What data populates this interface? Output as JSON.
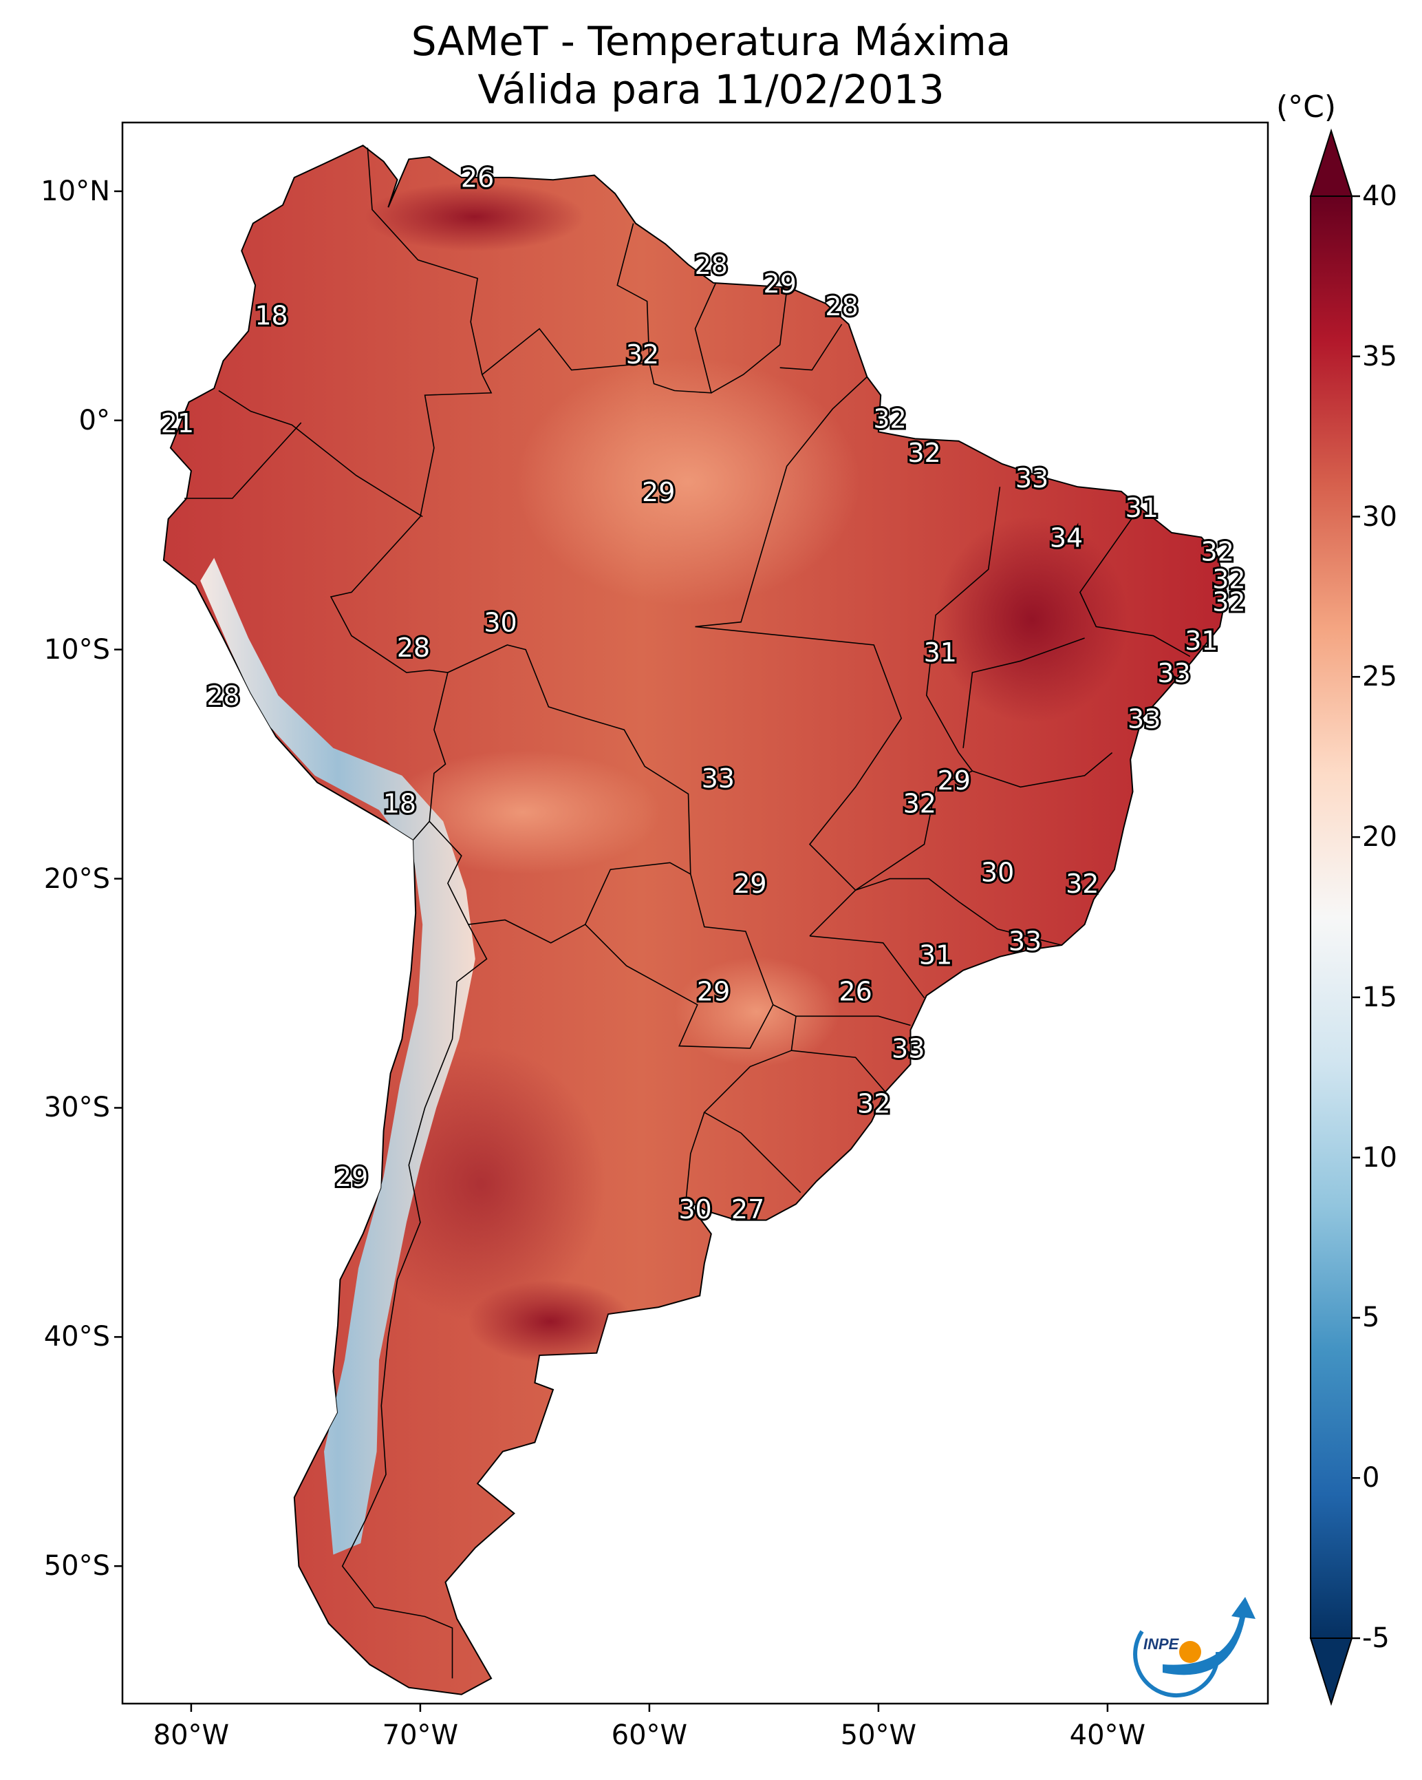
{
  "title": {
    "line1": "SAMeT - Temperatura Máxima",
    "line2": "Válida para 11/02/2013"
  },
  "axes": {
    "lat_labels": [
      "10°N",
      "0°",
      "10°S",
      "20°S",
      "30°S",
      "40°S",
      "50°S"
    ],
    "lat_values": [
      10,
      0,
      -10,
      -20,
      -30,
      -40,
      -50
    ],
    "lon_labels": [
      "80°W",
      "70°W",
      "60°W",
      "50°W",
      "40°W"
    ],
    "lon_values": [
      -80,
      -70,
      -60,
      -50,
      -40
    ],
    "lat_range": [
      -56,
      13
    ],
    "lon_range": [
      -83,
      -33
    ]
  },
  "colorbar": {
    "unit": "(°C)",
    "labels": [
      "40",
      "35",
      "30",
      "25",
      "20",
      "15",
      "10",
      "5",
      "0",
      "-5"
    ],
    "values": [
      40,
      35,
      30,
      25,
      20,
      15,
      10,
      5,
      0,
      -5
    ],
    "range": [
      -5,
      40
    ],
    "colors": [
      "#053061",
      "#2166ac",
      "#4393c3",
      "#92c5de",
      "#d1e5f0",
      "#f7f7f7",
      "#fddbc7",
      "#f4a582",
      "#d6604d",
      "#b2182b",
      "#67001f"
    ]
  },
  "logo": {
    "text": "INPE",
    "colors": {
      "blue": "#1a7cc1",
      "orange": "#f39200"
    }
  },
  "map_annotations": [
    {
      "label": "26",
      "lon": -67.5,
      "lat": 10.5
    },
    {
      "label": "28",
      "lon": -57.3,
      "lat": 6.7
    },
    {
      "label": "29",
      "lon": -54.3,
      "lat": 5.9
    },
    {
      "label": "28",
      "lon": -51.6,
      "lat": 4.9
    },
    {
      "label": "18",
      "lon": -76.5,
      "lat": 4.5
    },
    {
      "label": "32",
      "lon": -60.3,
      "lat": 2.8
    },
    {
      "label": "32",
      "lon": -49.5,
      "lat": 0.0
    },
    {
      "label": "21",
      "lon": -80.6,
      "lat": -0.2
    },
    {
      "label": "32",
      "lon": -48.0,
      "lat": -1.5
    },
    {
      "label": "33",
      "lon": -43.3,
      "lat": -2.6
    },
    {
      "label": "29",
      "lon": -59.6,
      "lat": -3.2
    },
    {
      "label": "31",
      "lon": -38.5,
      "lat": -3.9
    },
    {
      "label": "34",
      "lon": -41.8,
      "lat": -5.2
    },
    {
      "label": "32",
      "lon": -35.2,
      "lat": -5.8
    },
    {
      "label": "32",
      "lon": -34.7,
      "lat": -7.0
    },
    {
      "label": "32",
      "lon": -34.7,
      "lat": -8.0
    },
    {
      "label": "30",
      "lon": -66.5,
      "lat": -8.9
    },
    {
      "label": "28",
      "lon": -70.3,
      "lat": -10.0
    },
    {
      "label": "31",
      "lon": -35.9,
      "lat": -9.7
    },
    {
      "label": "31",
      "lon": -47.3,
      "lat": -10.2
    },
    {
      "label": "33",
      "lon": -37.1,
      "lat": -11.1
    },
    {
      "label": "28",
      "lon": -78.6,
      "lat": -12.1
    },
    {
      "label": "33",
      "lon": -38.4,
      "lat": -13.1
    },
    {
      "label": "33",
      "lon": -57.0,
      "lat": -15.7
    },
    {
      "label": "29",
      "lon": -46.7,
      "lat": -15.8
    },
    {
      "label": "32",
      "lon": -48.2,
      "lat": -16.8
    },
    {
      "label": "18",
      "lon": -70.9,
      "lat": -16.8
    },
    {
      "label": "30",
      "lon": -44.8,
      "lat": -19.8
    },
    {
      "label": "29",
      "lon": -55.6,
      "lat": -20.3
    },
    {
      "label": "32",
      "lon": -41.1,
      "lat": -20.3
    },
    {
      "label": "33",
      "lon": -43.6,
      "lat": -22.8
    },
    {
      "label": "31",
      "lon": -47.5,
      "lat": -23.4
    },
    {
      "label": "29",
      "lon": -57.2,
      "lat": -25.0
    },
    {
      "label": "26",
      "lon": -51.0,
      "lat": -25.0
    },
    {
      "label": "33",
      "lon": -48.7,
      "lat": -27.5
    },
    {
      "label": "32",
      "lon": -50.2,
      "lat": -29.9
    },
    {
      "label": "29",
      "lon": -73.0,
      "lat": -33.1
    },
    {
      "label": "30",
      "lon": -58.0,
      "lat": -34.5
    },
    {
      "label": "27",
      "lon": -55.7,
      "lat": -34.5
    }
  ]
}
